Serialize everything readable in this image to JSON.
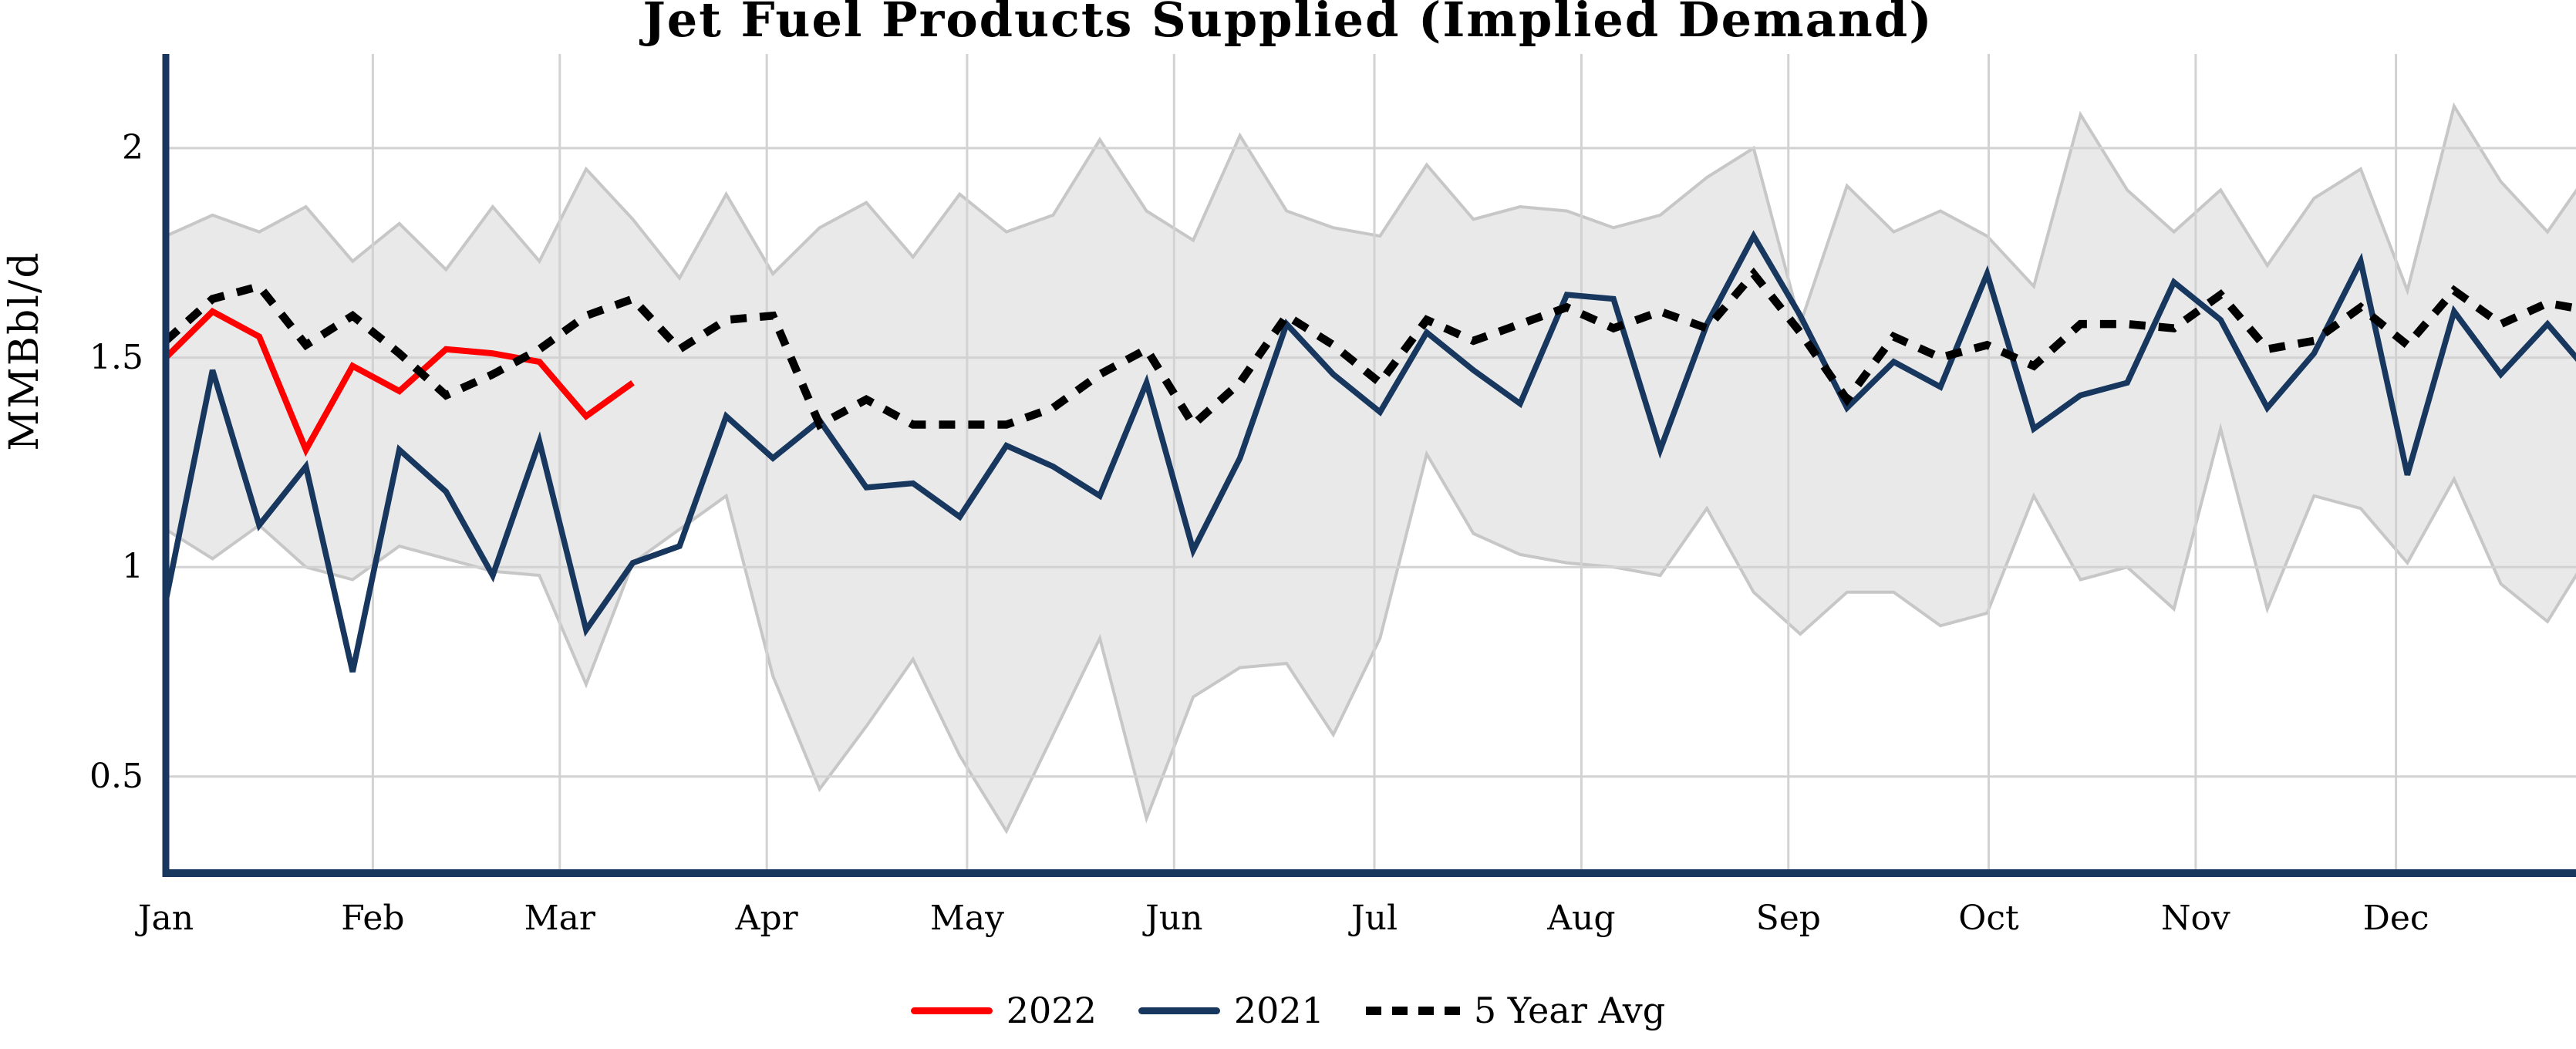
{
  "title": "Jet Fuel Products Supplied (Implied Demand)",
  "y_axis": {
    "label": "MMBbl/d",
    "ticks": [
      {
        "label": "2",
        "value": 2.0
      },
      {
        "label": "1.5",
        "value": 1.5
      },
      {
        "label": "1",
        "value": 1.0
      },
      {
        "label": "0.5",
        "value": 0.5
      }
    ]
  },
  "x_axis": {
    "months": [
      {
        "label": "Jan",
        "start_day": 0
      },
      {
        "label": "Feb",
        "start_day": 31
      },
      {
        "label": "Mar",
        "start_day": 59
      },
      {
        "label": "Apr",
        "start_day": 90
      },
      {
        "label": "May",
        "start_day": 120
      },
      {
        "label": "Jun",
        "start_day": 151
      },
      {
        "label": "Jul",
        "start_day": 181
      },
      {
        "label": "Aug",
        "start_day": 212
      },
      {
        "label": "Sep",
        "start_day": 243
      },
      {
        "label": "Oct",
        "start_day": 273
      },
      {
        "label": "Nov",
        "start_day": 304
      },
      {
        "label": "Dec",
        "start_day": 334
      }
    ]
  },
  "legend": [
    {
      "label": "2022",
      "color": "#FF0000",
      "style": "solid"
    },
    {
      "label": "2021",
      "color": "#17375E",
      "style": "solid"
    },
    {
      "label": "5 Year Avg",
      "color": "#000000",
      "style": "dotted"
    }
  ],
  "colors": {
    "axis": "#17375E",
    "gridline": "#D2D2D2",
    "band_fill": "#E9E9E9",
    "band_edge": "#C7C7C7",
    "series_2022": "#FF0000",
    "series_2021": "#17375E",
    "series_avg": "#000000"
  },
  "chart_data": {
    "type": "line",
    "title": "Jet Fuel Products Supplied (Implied Demand)",
    "ylabel": "MMBbl/d",
    "xlabel": "",
    "x_unit": "week of year (weekly data)",
    "ylim": [
      0.28,
      2.21
    ],
    "grid": true,
    "legend_position": "bottom-center",
    "series": [
      {
        "name": "2022",
        "style": "solid",
        "color": "#FF0000",
        "values": [
          1.5,
          1.61,
          1.55,
          1.28,
          1.48,
          1.42,
          1.52,
          1.51,
          1.49,
          1.36,
          1.44
        ]
      },
      {
        "name": "2021",
        "style": "solid",
        "color": "#17375E",
        "values": [
          0.92,
          1.47,
          1.1,
          1.24,
          0.75,
          1.28,
          1.18,
          0.98,
          1.3,
          0.85,
          1.01,
          1.05,
          1.36,
          1.26,
          1.35,
          1.19,
          1.2,
          1.12,
          1.29,
          1.24,
          1.17,
          1.44,
          1.04,
          1.26,
          1.58,
          1.46,
          1.37,
          1.56,
          1.47,
          1.39,
          1.65,
          1.64,
          1.28,
          1.58,
          1.79,
          1.6,
          1.38,
          1.49,
          1.43,
          1.7,
          1.33,
          1.41,
          1.44,
          1.68,
          1.59,
          1.38,
          1.51,
          1.73,
          1.22,
          1.61,
          1.46,
          1.58,
          1.45
        ]
      },
      {
        "name": "5 Year Avg",
        "style": "dotted",
        "color": "#000000",
        "values": [
          1.54,
          1.64,
          1.67,
          1.53,
          1.6,
          1.51,
          1.41,
          1.46,
          1.52,
          1.6,
          1.64,
          1.52,
          1.59,
          1.6,
          1.34,
          1.4,
          1.34,
          1.34,
          1.34,
          1.38,
          1.46,
          1.52,
          1.34,
          1.44,
          1.6,
          1.53,
          1.44,
          1.59,
          1.54,
          1.58,
          1.62,
          1.57,
          1.61,
          1.57,
          1.7,
          1.56,
          1.4,
          1.55,
          1.5,
          1.53,
          1.48,
          1.58,
          1.58,
          1.57,
          1.65,
          1.52,
          1.54,
          1.62,
          1.53,
          1.66,
          1.58,
          1.63,
          1.61
        ]
      }
    ],
    "band": {
      "name": "5-year range",
      "fill": "#E9E9E9",
      "upper": [
        1.79,
        1.84,
        1.8,
        1.86,
        1.73,
        1.82,
        1.71,
        1.86,
        1.73,
        1.95,
        1.83,
        1.69,
        1.89,
        1.7,
        1.81,
        1.87,
        1.74,
        1.89,
        1.8,
        1.84,
        2.02,
        1.85,
        1.78,
        2.03,
        1.85,
        1.81,
        1.79,
        1.96,
        1.83,
        1.86,
        1.85,
        1.81,
        1.84,
        1.93,
        2.0,
        1.58,
        1.91,
        1.8,
        1.85,
        1.79,
        1.67,
        2.08,
        1.9,
        1.8,
        1.9,
        1.72,
        1.88,
        1.95,
        1.66,
        2.1,
        1.92,
        1.8,
        1.96
      ],
      "lower": [
        1.09,
        1.02,
        1.1,
        1.0,
        0.97,
        1.05,
        1.02,
        0.99,
        0.98,
        0.72,
        1.01,
        1.09,
        1.17,
        0.74,
        0.47,
        0.62,
        0.78,
        0.55,
        0.37,
        0.6,
        0.83,
        0.4,
        0.69,
        0.76,
        0.77,
        0.6,
        0.83,
        1.27,
        1.08,
        1.03,
        1.01,
        1.0,
        0.98,
        1.14,
        0.94,
        0.84,
        0.94,
        0.94,
        0.86,
        0.89,
        1.17,
        0.97,
        1.0,
        0.9,
        1.33,
        0.9,
        1.17,
        1.14,
        1.01,
        1.21,
        0.96,
        0.87,
        1.05
      ]
    }
  }
}
